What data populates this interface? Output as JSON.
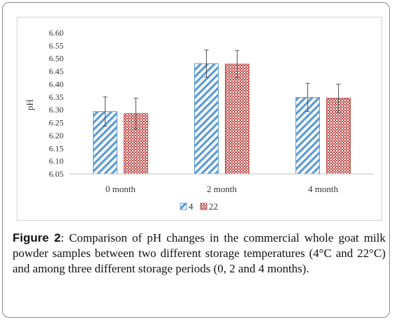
{
  "chart_data": {
    "type": "bar",
    "title": "",
    "xlabel": "",
    "ylabel": "pH",
    "ylim": [
      6.05,
      6.6
    ],
    "yticks": [
      "6.05",
      "6.10",
      "6.15",
      "6.20",
      "6.25",
      "6.30",
      "6.35",
      "6.40",
      "6.45",
      "6.50",
      "6.55",
      "6.60"
    ],
    "categories": [
      "0 month",
      "2 month",
      "4 month"
    ],
    "series": [
      {
        "name": "4",
        "values": [
          6.293,
          6.48,
          6.348
        ],
        "errors": [
          0.057,
          0.053,
          0.055
        ],
        "color": "#5b9bd5",
        "pattern": "diagonal-stripes"
      },
      {
        "name": "22",
        "values": [
          6.285,
          6.478,
          6.345
        ],
        "errors": [
          0.06,
          0.053,
          0.055
        ],
        "color": "#c0504d",
        "pattern": "checker"
      }
    ],
    "legend": "bottom-center",
    "grid": false
  },
  "caption": {
    "label": "Figure 2",
    "text": ": Comparison of pH changes in the commercial whole goat milk powder samples between two different storage temperatures (4°C and 22°C) and among three different storage periods (0, 2 and 4 months)."
  }
}
